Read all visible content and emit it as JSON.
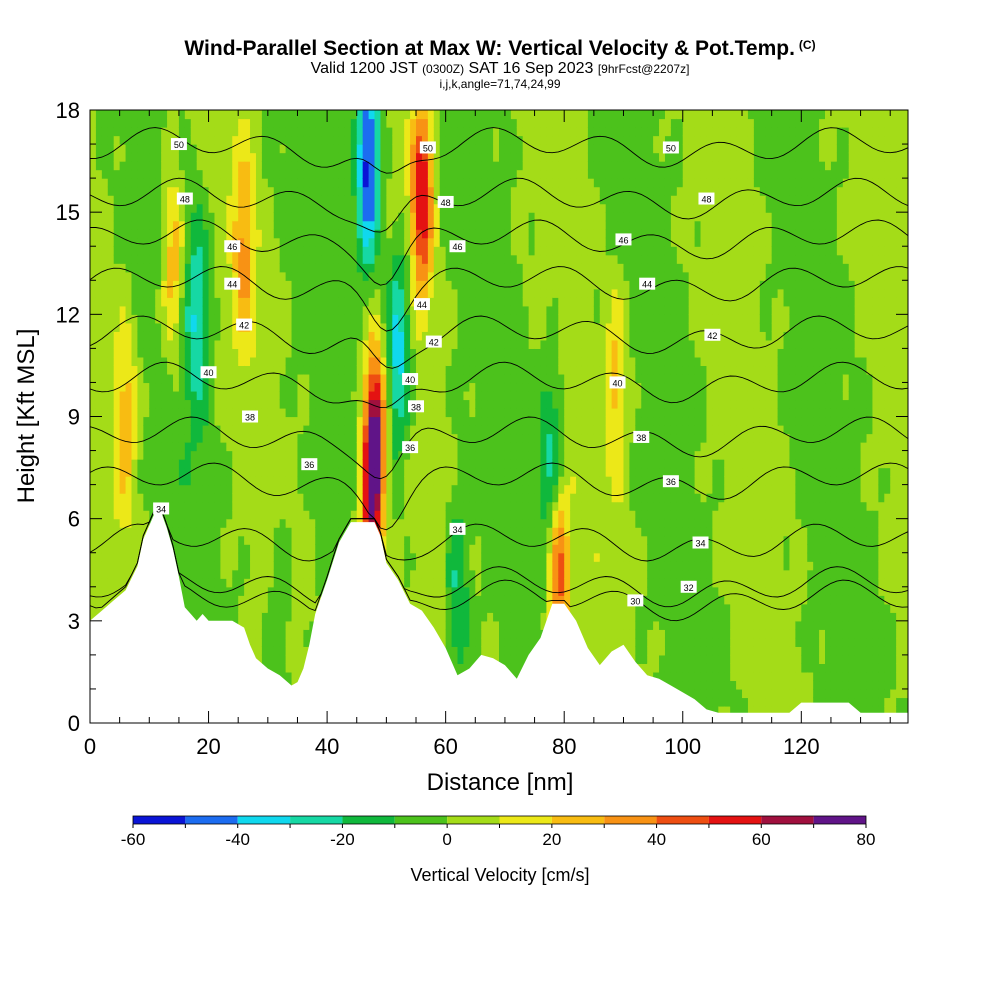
{
  "header": {
    "title": "Wind-Parallel Section at Max W: Vertical Velocity & Pot.Temp.",
    "copyright_mark": "(C)",
    "valid_prefix": "Valid 1200 JST",
    "valid_utc": "(0300Z)",
    "valid_date": "SAT 16 Sep 2023",
    "forecast_note": "[9hrFcst@2207z]",
    "index_line": "i,j,k,angle=71,74,24,99"
  },
  "chart_data": {
    "type": "heatmap",
    "xlabel": "Distance [nm]",
    "ylabel": "Height [Kft MSL]",
    "xlim": [
      0,
      138
    ],
    "ylim": [
      0,
      18
    ],
    "x_ticks": [
      "0",
      "20",
      "40",
      "60",
      "80",
      "100",
      "120"
    ],
    "y_ticks": [
      "0",
      "3",
      "6",
      "9",
      "12",
      "15",
      "18"
    ],
    "x_tick_values": [
      0,
      20,
      40,
      60,
      80,
      100,
      120
    ],
    "y_tick_values": [
      0,
      3,
      6,
      9,
      12,
      15,
      18
    ],
    "colorbar": {
      "label": "Vertical Velocity [cm/s]",
      "tick_labels": [
        "-60",
        "-40",
        "-20",
        "0",
        "20",
        "40",
        "60",
        "80"
      ],
      "tick_values": [
        -60,
        -40,
        -20,
        0,
        20,
        40,
        60,
        80
      ],
      "levels": [
        -60,
        -50,
        -40,
        -30,
        -20,
        -10,
        0,
        10,
        20,
        30,
        40,
        50,
        60,
        70,
        80
      ],
      "colors": [
        "#0a14d6",
        "#1c6cf0",
        "#10d8ee",
        "#16d8a4",
        "#10b83c",
        "#4cc21c",
        "#a4dc18",
        "#ece818",
        "#f8bc12",
        "#f89214",
        "#ee4e12",
        "#e41212",
        "#a0103e",
        "#601488"
      ]
    },
    "terrain_kft": [
      [
        0,
        3.0
      ],
      [
        2,
        3.3
      ],
      [
        4,
        3.6
      ],
      [
        6,
        3.9
      ],
      [
        8,
        4.6
      ],
      [
        9,
        5.4
      ],
      [
        10,
        5.8
      ],
      [
        11,
        6.2
      ],
      [
        12,
        6.2
      ],
      [
        13,
        5.7
      ],
      [
        14,
        5.1
      ],
      [
        15,
        4.3
      ],
      [
        16,
        3.4
      ],
      [
        17,
        3.2
      ],
      [
        18,
        3.0
      ],
      [
        19,
        3.2
      ],
      [
        20,
        3.0
      ],
      [
        22,
        3.0
      ],
      [
        24,
        3.0
      ],
      [
        26,
        2.8
      ],
      [
        27,
        2.3
      ],
      [
        28,
        1.9
      ],
      [
        30,
        1.6
      ],
      [
        32,
        1.4
      ],
      [
        34,
        1.1
      ],
      [
        35,
        1.2
      ],
      [
        36,
        1.6
      ],
      [
        37,
        2.3
      ],
      [
        38,
        3.2
      ],
      [
        40,
        4.2
      ],
      [
        42,
        5.3
      ],
      [
        43,
        5.6
      ],
      [
        44,
        5.9
      ],
      [
        46,
        5.9
      ],
      [
        48,
        5.9
      ],
      [
        49,
        5.5
      ],
      [
        50,
        4.7
      ],
      [
        52,
        4.2
      ],
      [
        54,
        3.5
      ],
      [
        56,
        3.3
      ],
      [
        58,
        2.8
      ],
      [
        60,
        2.2
      ],
      [
        62,
        1.4
      ],
      [
        64,
        1.6
      ],
      [
        66,
        2.0
      ],
      [
        68,
        1.9
      ],
      [
        70,
        1.7
      ],
      [
        72,
        1.3
      ],
      [
        74,
        2.0
      ],
      [
        76,
        2.5
      ],
      [
        78,
        3.5
      ],
      [
        80,
        3.5
      ],
      [
        82,
        3.0
      ],
      [
        84,
        2.2
      ],
      [
        86,
        1.7
      ],
      [
        88,
        2.1
      ],
      [
        90,
        2.3
      ],
      [
        92,
        1.8
      ],
      [
        94,
        1.4
      ],
      [
        96,
        1.3
      ],
      [
        98,
        1.1
      ],
      [
        100,
        0.9
      ],
      [
        102,
        0.7
      ],
      [
        104,
        0.4
      ],
      [
        106,
        0.3
      ],
      [
        118,
        0.3
      ],
      [
        120,
        0.6
      ],
      [
        128,
        0.6
      ],
      [
        130,
        0.3
      ],
      [
        138,
        0.3
      ]
    ],
    "updrafts": [
      {
        "x": 48,
        "y": 8.2,
        "max": 80
      },
      {
        "x": 56,
        "y": 15.5,
        "max": 60
      },
      {
        "x": 79,
        "y": 4.5,
        "max": 50
      },
      {
        "x": 47,
        "y": 5.2,
        "max": 40
      },
      {
        "x": 14,
        "y": 13.5,
        "max": 30
      },
      {
        "x": 26,
        "y": 14.0,
        "max": 30
      },
      {
        "x": 89,
        "y": 10.0,
        "max": 25
      },
      {
        "x": 6,
        "y": 9.0,
        "max": 25
      }
    ],
    "downdrafts": [
      {
        "x": 47,
        "y": 16.5,
        "min": -60
      },
      {
        "x": 52,
        "y": 11.0,
        "min": -40
      },
      {
        "x": 78,
        "y": 7.5,
        "min": -30
      },
      {
        "x": 18,
        "y": 12.0,
        "min": -30
      },
      {
        "x": 62,
        "y": 3.6,
        "min": -25
      },
      {
        "x": 32,
        "y": 2.8,
        "min": -15
      }
    ],
    "theta_contours": [
      {
        "label": "30",
        "level_kft": 3.6,
        "label_x": 92
      },
      {
        "label": "32",
        "level_kft": 4.0,
        "label_x": 101
      },
      {
        "label": "34",
        "level_kft": 5.3,
        "label_x": 103
      },
      {
        "label": "36",
        "level_kft": 7.1,
        "label_x": 98
      },
      {
        "label": "38",
        "level_kft": 8.4,
        "label_x": 93
      },
      {
        "label": "40",
        "level_kft": 10.0,
        "label_x": 89
      },
      {
        "label": "42",
        "level_kft": 11.4,
        "label_x": 105
      },
      {
        "label": "44",
        "level_kft": 12.9,
        "label_x": 94
      },
      {
        "label": "46",
        "level_kft": 14.2,
        "label_x": 90
      },
      {
        "label": "48",
        "level_kft": 15.4,
        "label_x": 104
      },
      {
        "label": "50",
        "level_kft": 16.9,
        "label_x": 98
      }
    ],
    "extra_contour_labels": [
      {
        "label": "50",
        "x": 15,
        "y": 17.0
      },
      {
        "label": "48",
        "x": 16,
        "y": 15.4
      },
      {
        "label": "46",
        "x": 24,
        "y": 14.0
      },
      {
        "label": "44",
        "x": 24,
        "y": 12.9
      },
      {
        "label": "42",
        "x": 26,
        "y": 11.7
      },
      {
        "label": "40",
        "x": 20,
        "y": 10.3
      },
      {
        "label": "38",
        "x": 27,
        "y": 9.0
      },
      {
        "label": "36",
        "x": 37,
        "y": 7.6
      },
      {
        "label": "34",
        "x": 12,
        "y": 6.3
      },
      {
        "label": "50",
        "x": 57,
        "y": 16.9
      },
      {
        "label": "48",
        "x": 60,
        "y": 15.3
      },
      {
        "label": "46",
        "x": 62,
        "y": 14.0
      },
      {
        "label": "44",
        "x": 56,
        "y": 12.3
      },
      {
        "label": "42",
        "x": 58,
        "y": 11.2
      },
      {
        "label": "40",
        "x": 54,
        "y": 10.1
      },
      {
        "label": "38",
        "x": 55,
        "y": 9.3
      },
      {
        "label": "36",
        "x": 54,
        "y": 8.1
      },
      {
        "label": "34",
        "x": 62,
        "y": 5.7
      }
    ]
  }
}
